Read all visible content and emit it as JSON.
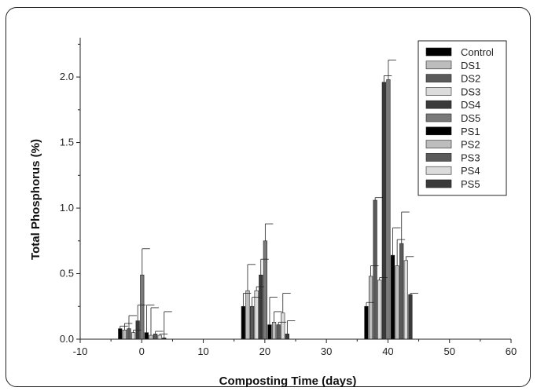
{
  "chart_data": {
    "type": "bar",
    "xlabel": "Composting Time (days)",
    "ylabel": "Total Phosphorus (%)",
    "xlim": [
      -10,
      60
    ],
    "ylim": [
      0,
      2.3
    ],
    "xticks": [
      -10,
      0,
      10,
      20,
      30,
      40,
      50,
      60
    ],
    "yticks": [
      0.0,
      0.5,
      1.0,
      1.5,
      2.0
    ],
    "ytick_labels": [
      "0.0",
      "0.5",
      "1.0",
      "1.5",
      "2.0"
    ],
    "legend_position": "top-right",
    "error_bars": true,
    "sampling_days": [
      0,
      20,
      40
    ],
    "series": [
      {
        "name": "Control",
        "color": "#000000",
        "values": [
          0.08,
          0.25,
          0.25
        ],
        "errors": [
          0.02,
          0.1,
          0.03
        ]
      },
      {
        "name": "DS1",
        "color": "#bdbdbd",
        "values": [
          0.07,
          0.37,
          0.48
        ],
        "errors": [
          0.05,
          0.2,
          0.08
        ]
      },
      {
        "name": "DS2",
        "color": "#5a5a5a",
        "values": [
          0.08,
          0.25,
          1.06
        ],
        "errors": [
          0.1,
          0.07,
          0.02
        ]
      },
      {
        "name": "DS3",
        "color": "#dcdcdc",
        "values": [
          0.05,
          0.37,
          0.45
        ],
        "errors": [
          0.02,
          0.03,
          0.02
        ]
      },
      {
        "name": "DS4",
        "color": "#3a3a3a",
        "values": [
          0.14,
          0.49,
          1.96
        ],
        "errors": [
          0.12,
          0.12,
          0.05
        ]
      },
      {
        "name": "DS5",
        "color": "#7a7a7a",
        "values": [
          0.49,
          0.75,
          1.98
        ],
        "errors": [
          0.2,
          0.13,
          0.15
        ]
      },
      {
        "name": "PS1",
        "color": "#000000",
        "values": [
          0.05,
          0.11,
          0.64
        ],
        "errors": [
          0.21,
          0.21,
          0.21
        ]
      },
      {
        "name": "PS2",
        "color": "#bdbdbd",
        "values": [
          0.03,
          0.13,
          0.56
        ],
        "errors": [
          0.21,
          0.08,
          0.2
        ]
      },
      {
        "name": "PS3",
        "color": "#5a5a5a",
        "values": [
          0.04,
          0.11,
          0.73
        ],
        "errors": [
          0.02,
          0.02,
          0.24
        ]
      },
      {
        "name": "PS4",
        "color": "#dcdcdc",
        "values": [
          0.03,
          0.2,
          0.6
        ],
        "errors": [
          0.01,
          0.15,
          0.03
        ]
      },
      {
        "name": "PS5",
        "color": "#3a3a3a",
        "values": [
          0.01,
          0.04,
          0.34
        ],
        "errors": [
          0.2,
          0.1,
          0.01
        ]
      }
    ]
  }
}
